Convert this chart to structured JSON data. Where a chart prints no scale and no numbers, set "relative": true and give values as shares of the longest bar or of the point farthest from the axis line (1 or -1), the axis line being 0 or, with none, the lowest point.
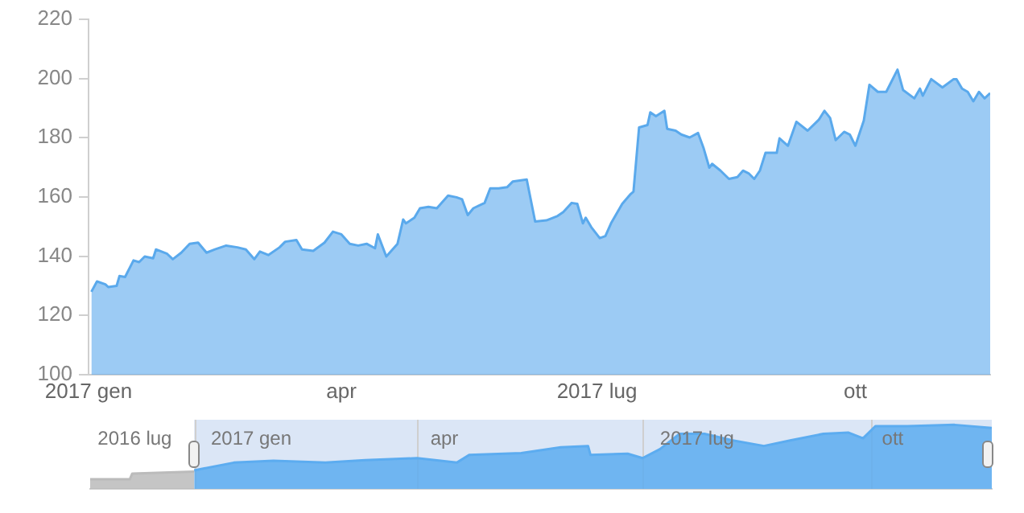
{
  "chart_data": [
    {
      "type": "area",
      "xlim": [
        "2017-01-01",
        "2017-11-18"
      ],
      "ylim": [
        100,
        220
      ],
      "yticks": [
        100,
        120,
        140,
        160,
        180,
        200,
        220
      ],
      "xticks": [
        {
          "value": "2017-01-01",
          "label": "2017 gen"
        },
        {
          "value": "2017-04-01",
          "label": "apr"
        },
        {
          "value": "2017-07-01",
          "label": "2017 lug"
        },
        {
          "value": "2017-10-01",
          "label": "ott"
        }
      ],
      "series": [
        {
          "color": "#5aa9ec",
          "x": [
            "2017-01-02",
            "2017-01-04",
            "2017-01-07",
            "2017-01-08",
            "2017-01-11",
            "2017-01-12",
            "2017-01-14",
            "2017-01-17",
            "2017-01-19",
            "2017-01-21",
            "2017-01-24",
            "2017-01-25",
            "2017-01-29",
            "2017-01-31",
            "2017-02-03",
            "2017-02-06",
            "2017-02-09",
            "2017-02-12",
            "2017-02-15",
            "2017-02-19",
            "2017-02-23",
            "2017-02-26",
            "2017-03-01",
            "2017-03-03",
            "2017-03-06",
            "2017-03-10",
            "2017-03-12",
            "2017-03-16",
            "2017-03-18",
            "2017-03-22",
            "2017-03-26",
            "2017-03-29",
            "2017-04-01",
            "2017-04-04",
            "2017-04-07",
            "2017-04-10",
            "2017-04-13",
            "2017-04-14",
            "2017-04-17",
            "2017-04-21",
            "2017-04-23",
            "2017-04-24",
            "2017-04-27",
            "2017-04-29",
            "2017-05-02",
            "2017-05-05",
            "2017-05-09",
            "2017-05-12",
            "2017-05-14",
            "2017-05-16",
            "2017-05-18",
            "2017-05-22",
            "2017-05-24",
            "2017-05-27",
            "2017-05-30",
            "2017-06-01",
            "2017-06-06",
            "2017-06-09",
            "2017-06-13",
            "2017-06-17",
            "2017-06-19",
            "2017-06-22",
            "2017-06-24",
            "2017-06-26",
            "2017-06-27",
            "2017-06-29",
            "2017-07-02",
            "2017-07-04",
            "2017-07-06",
            "2017-07-10",
            "2017-07-13",
            "2017-07-14",
            "2017-07-16",
            "2017-07-19",
            "2017-07-20",
            "2017-07-22",
            "2017-07-25",
            "2017-07-26",
            "2017-07-29",
            "2017-07-31",
            "2017-08-03",
            "2017-08-06",
            "2017-08-08",
            "2017-08-10",
            "2017-08-11",
            "2017-08-14",
            "2017-08-17",
            "2017-08-20",
            "2017-08-22",
            "2017-08-24",
            "2017-08-26",
            "2017-08-28",
            "2017-08-30",
            "2017-09-03",
            "2017-09-04",
            "2017-09-07",
            "2017-09-10",
            "2017-09-14",
            "2017-09-18",
            "2017-09-20",
            "2017-09-22",
            "2017-09-24",
            "2017-09-27",
            "2017-09-29",
            "2017-10-01",
            "2017-10-04",
            "2017-10-06",
            "2017-10-09",
            "2017-10-12",
            "2017-10-16",
            "2017-10-18",
            "2017-10-22",
            "2017-10-24",
            "2017-10-25",
            "2017-10-28",
            "2017-11-01",
            "2017-11-05",
            "2017-11-06",
            "2017-11-08",
            "2017-11-10",
            "2017-11-12",
            "2017-11-14",
            "2017-11-16",
            "2017-11-18"
          ],
          "values": [
            128,
            131.5,
            130.5,
            129.6,
            130,
            133.3,
            133,
            138.6,
            138,
            139.9,
            139.3,
            142.3,
            140.8,
            139,
            141.2,
            144.2,
            144.6,
            141.2,
            142.3,
            143.6,
            143,
            142.3,
            139,
            141.6,
            140.4,
            143,
            144.9,
            145.5,
            142.3,
            141.8,
            144.6,
            148.3,
            147.4,
            144.2,
            143.6,
            144.2,
            142.7,
            147.4,
            139.9,
            144.2,
            152.4,
            151.1,
            153,
            156.2,
            156.7,
            156.2,
            160.5,
            159.9,
            159.2,
            153.9,
            156.2,
            158,
            162.9,
            162.9,
            163.3,
            165.2,
            165.9,
            151.7,
            152.1,
            153.6,
            154.9,
            158,
            157.7,
            151.1,
            153,
            149.8,
            146.1,
            146.8,
            151.1,
            157.7,
            161,
            161.8,
            183.5,
            184.3,
            188.6,
            187.3,
            189.1,
            183,
            182.4,
            181.1,
            180.1,
            181.6,
            176.4,
            169.9,
            171.2,
            168.9,
            166.1,
            166.7,
            168.9,
            168,
            166.1,
            168.9,
            174.9,
            174.9,
            179.8,
            177.3,
            185.4,
            182.4,
            186.1,
            189.1,
            186.7,
            179.2,
            182,
            181.1,
            177.3,
            185.8,
            197.9,
            195.5,
            195.5,
            203,
            196.1,
            193.3,
            196.6,
            194.2,
            199.8,
            197,
            199.8,
            199.8,
            196.6,
            195.5,
            192.3,
            195.5,
            193.3,
            195.1
          ]
        }
      ]
    },
    {
      "type": "area",
      "relative": true,
      "xlim": [
        "2016-11-20",
        "2017-11-19"
      ],
      "xticks": [
        {
          "value": "2016-12-08",
          "label": "2016 lug"
        },
        {
          "value": "2017-01-24",
          "label": "2017 gen"
        },
        {
          "value": "2017-04-12",
          "label": "apr"
        },
        {
          "value": "2017-07-23",
          "label": "2017 lug"
        },
        {
          "value": "2017-10-10",
          "label": "ott"
        }
      ],
      "ref_lines": [
        {
          "axis": "x",
          "value": "2017-01-01",
          "color": "#cfcfcf"
        },
        {
          "axis": "x",
          "value": "2017-04-01",
          "color": "#cfcfcf"
        },
        {
          "axis": "x",
          "value": "2017-07-01",
          "color": "#cfcfcf"
        },
        {
          "axis": "x",
          "value": "2017-10-01",
          "color": "#cfcfcf"
        }
      ],
      "bands": [
        {
          "axis": "x",
          "from": "2017-01-01",
          "to": "2017-11-19",
          "color": "#dbe6f6"
        }
      ],
      "series": [
        {
          "color": "#bbbbbb",
          "x": [
            "2016-11-20",
            "2016-12-06",
            "2016-12-07",
            "2017-01-01"
          ],
          "values": [
            0.15,
            0.15,
            0.24,
            0.27
          ]
        },
        {
          "color": "#5cacf0",
          "x": [
            "2017-01-01",
            "2017-01-17",
            "2017-02-02",
            "2017-02-23",
            "2017-03-11",
            "2017-04-01",
            "2017-04-17",
            "2017-04-22",
            "2017-05-13",
            "2017-05-29",
            "2017-06-09",
            "2017-06-10",
            "2017-06-25",
            "2017-07-01",
            "2017-07-08",
            "2017-07-16",
            "2017-07-26",
            "2017-08-06",
            "2017-08-19",
            "2017-08-30",
            "2017-09-12",
            "2017-09-22",
            "2017-09-28",
            "2017-10-03",
            "2017-10-16",
            "2017-11-04",
            "2017-11-19"
          ],
          "values": [
            0.29,
            0.41,
            0.44,
            0.41,
            0.45,
            0.48,
            0.41,
            0.53,
            0.56,
            0.65,
            0.67,
            0.53,
            0.55,
            0.48,
            0.62,
            0.86,
            0.86,
            0.76,
            0.67,
            0.76,
            0.86,
            0.88,
            0.79,
            0.98,
            0.98,
            1,
            0.95
          ]
        }
      ]
    }
  ]
}
